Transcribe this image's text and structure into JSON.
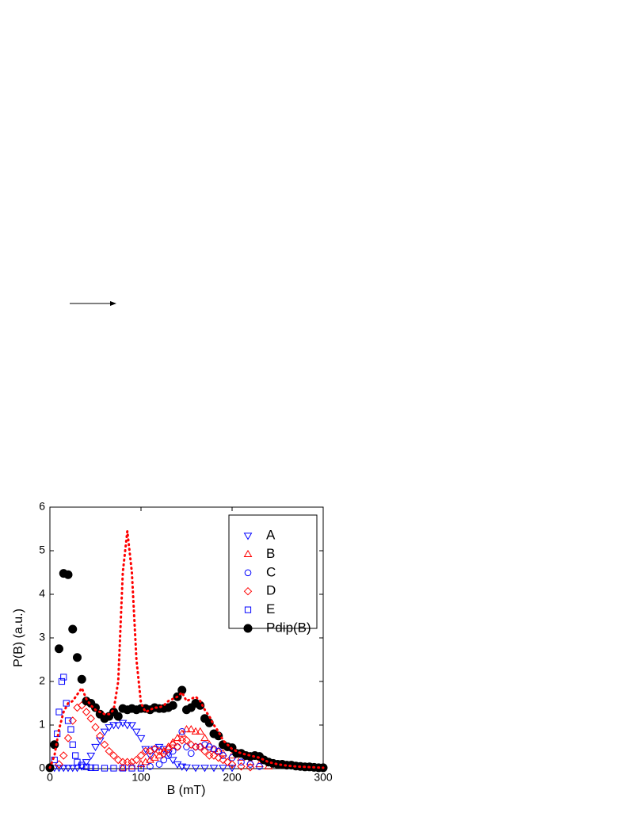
{
  "chart_data": {
    "type": "scatter",
    "xlabel": "B (mT)",
    "ylabel": "P(B)  (a.u.)",
    "xlim": [
      0,
      300
    ],
    "ylim": [
      0,
      6
    ],
    "xticks": [
      0,
      100,
      200,
      300
    ],
    "yticks": [
      0,
      1,
      2,
      3,
      4,
      5,
      6
    ],
    "series": [
      {
        "name": "A",
        "color": "#0000ff",
        "marker": "triangle-down",
        "x": [
          5,
          10,
          15,
          20,
          25,
          30,
          35,
          40,
          45,
          50,
          55,
          60,
          65,
          70,
          75,
          80,
          85,
          90,
          95,
          100,
          105,
          110,
          115,
          120,
          125,
          130,
          135,
          140,
          145,
          150,
          160,
          170,
          180,
          190,
          200
        ],
        "values": [
          0.02,
          0.02,
          0.02,
          0.02,
          0.02,
          0.02,
          0.05,
          0.15,
          0.3,
          0.5,
          0.65,
          0.85,
          0.95,
          1.0,
          1.0,
          1.05,
          1.0,
          1.0,
          0.85,
          0.7,
          0.45,
          0.3,
          0.45,
          0.5,
          0.45,
          0.35,
          0.2,
          0.1,
          0.05,
          0.03,
          0.02,
          0.02,
          0.02,
          0.02,
          0.02
        ]
      },
      {
        "name": "B",
        "color": "#ff0000",
        "marker": "triangle-up",
        "x": [
          80,
          90,
          100,
          105,
          110,
          115,
          120,
          125,
          130,
          135,
          140,
          145,
          150,
          155,
          160,
          165,
          170,
          175,
          180,
          185,
          190,
          200,
          210,
          220,
          230,
          240
        ],
        "values": [
          0.02,
          0.05,
          0.1,
          0.15,
          0.2,
          0.25,
          0.3,
          0.4,
          0.5,
          0.6,
          0.7,
          0.8,
          0.9,
          0.9,
          0.85,
          0.85,
          0.7,
          0.55,
          0.45,
          0.4,
          0.35,
          0.3,
          0.25,
          0.15,
          0.1,
          0.05
        ]
      },
      {
        "name": "C",
        "color": "#0000ff",
        "marker": "circle",
        "x": [
          110,
          120,
          125,
          130,
          135,
          140,
          145,
          150,
          155,
          160,
          165,
          170,
          175,
          180,
          185,
          190,
          200,
          210,
          220,
          230
        ],
        "values": [
          0.05,
          0.1,
          0.2,
          0.3,
          0.4,
          0.5,
          0.85,
          0.5,
          0.35,
          0.5,
          0.5,
          0.55,
          0.5,
          0.45,
          0.4,
          0.3,
          0.25,
          0.15,
          0.1,
          0.05
        ]
      },
      {
        "name": "D",
        "color": "#ff0000",
        "marker": "diamond",
        "x": [
          10,
          15,
          20,
          25,
          30,
          35,
          40,
          45,
          50,
          55,
          60,
          65,
          70,
          75,
          80,
          85,
          90,
          95,
          100,
          105,
          110,
          115,
          120,
          125,
          130,
          135,
          140,
          145,
          150,
          155,
          160,
          165,
          170,
          175,
          180,
          185,
          190,
          195,
          200,
          210,
          220
        ],
        "values": [
          0.1,
          0.3,
          0.7,
          1.1,
          1.4,
          1.45,
          1.3,
          1.15,
          0.95,
          0.75,
          0.55,
          0.4,
          0.3,
          0.2,
          0.15,
          0.15,
          0.15,
          0.2,
          0.3,
          0.4,
          0.4,
          0.45,
          0.4,
          0.35,
          0.45,
          0.55,
          0.5,
          0.65,
          0.65,
          0.55,
          0.5,
          0.5,
          0.4,
          0.3,
          0.3,
          0.25,
          0.2,
          0.15,
          0.1,
          0.05,
          0.03
        ]
      },
      {
        "name": "E",
        "color": "#0000ff",
        "marker": "square",
        "x": [
          5,
          8,
          10,
          13,
          15,
          18,
          20,
          23,
          25,
          28,
          30,
          35,
          40,
          45,
          50,
          60,
          70,
          80,
          90,
          100
        ],
        "values": [
          0.2,
          0.8,
          1.3,
          2.0,
          2.1,
          1.5,
          1.1,
          0.9,
          0.55,
          0.3,
          0.15,
          0.08,
          0.04,
          0.02,
          0.02,
          0.01,
          0.01,
          0.01,
          0.01,
          0.01
        ]
      },
      {
        "name": "Pdip(B)",
        "color": "#000000",
        "marker": "filled-circle",
        "x": [
          0,
          5,
          10,
          15,
          20,
          25,
          30,
          35,
          40,
          45,
          50,
          55,
          60,
          65,
          70,
          75,
          80,
          85,
          90,
          95,
          100,
          105,
          110,
          115,
          120,
          125,
          130,
          135,
          140,
          145,
          150,
          155,
          160,
          165,
          170,
          175,
          180,
          185,
          190,
          195,
          200,
          205,
          210,
          215,
          220,
          225,
          230,
          235,
          240,
          245,
          250,
          255,
          260,
          265,
          270,
          275,
          280,
          285,
          290,
          295,
          300
        ],
        "values": [
          0.02,
          0.55,
          2.75,
          4.48,
          4.45,
          3.2,
          2.55,
          2.05,
          1.55,
          1.5,
          1.4,
          1.25,
          1.15,
          1.2,
          1.3,
          1.2,
          1.38,
          1.35,
          1.38,
          1.35,
          1.38,
          1.38,
          1.35,
          1.4,
          1.38,
          1.38,
          1.4,
          1.45,
          1.65,
          1.8,
          1.35,
          1.4,
          1.5,
          1.45,
          1.15,
          1.05,
          0.8,
          0.75,
          0.55,
          0.5,
          0.48,
          0.35,
          0.35,
          0.3,
          0.28,
          0.3,
          0.28,
          0.2,
          0.15,
          0.12,
          0.1,
          0.1,
          0.08,
          0.08,
          0.06,
          0.05,
          0.04,
          0.04,
          0.03,
          0.02,
          0.02
        ]
      },
      {
        "color": "#ff0000",
        "marker": "dotted-line",
        "x": [
          0,
          5,
          10,
          15,
          20,
          25,
          30,
          35,
          40,
          45,
          50,
          55,
          60,
          65,
          70,
          75,
          80,
          85,
          90,
          95,
          100,
          105,
          110,
          115,
          120,
          125,
          130,
          135,
          140,
          145,
          150,
          155,
          160,
          165,
          170,
          175,
          180,
          185,
          190,
          195,
          200,
          210,
          220,
          230,
          240,
          250,
          260,
          270,
          280,
          290,
          300
        ],
        "values": [
          0.02,
          0.3,
          0.9,
          1.3,
          1.5,
          1.55,
          1.7,
          1.85,
          1.6,
          1.45,
          1.35,
          1.3,
          1.25,
          1.25,
          1.35,
          2.0,
          4.5,
          5.45,
          4.5,
          2.5,
          1.5,
          1.3,
          1.35,
          1.4,
          1.4,
          1.45,
          1.55,
          1.6,
          1.65,
          1.75,
          1.55,
          1.6,
          1.65,
          1.55,
          1.35,
          1.2,
          1.0,
          0.85,
          0.65,
          0.55,
          0.45,
          0.35,
          0.3,
          0.25,
          0.15,
          0.1,
          0.07,
          0.05,
          0.04,
          0.03,
          0.02
        ]
      }
    ]
  }
}
